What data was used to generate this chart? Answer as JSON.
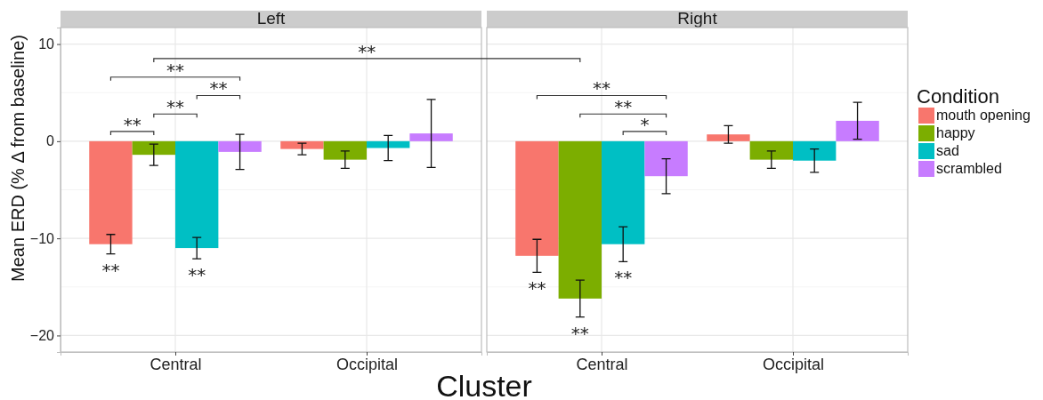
{
  "chart_data": [
    {
      "type": "bar",
      "title": "Left",
      "xlabel": "Cluster",
      "ylabel": "Mean ERD (% Δ from baseline)",
      "categories": [
        "Central",
        "Occipital"
      ],
      "series": [
        {
          "color": "#f8766d",
          "values": [
            -10.6,
            -0.8
          ],
          "errors": [
            1.0,
            0.6
          ]
        },
        {
          "color": "#7cae00",
          "values": [
            -1.4,
            -1.9
          ],
          "errors": [
            1.1,
            0.9
          ]
        },
        {
          "color": "#00bfc4",
          "values": [
            -11.0,
            -0.7
          ],
          "errors": [
            1.1,
            1.3
          ]
        },
        {
          "color": "#c77cff",
          "values": [
            -1.1,
            0.8
          ],
          "errors": [
            1.8,
            3.5
          ]
        }
      ],
      "ylim": [
        -21.7,
        11.7
      ],
      "yticks": [
        {
          "value": -20,
          "label": "−20"
        },
        {
          "value": -15,
          "label": null
        },
        {
          "value": -10,
          "label": "−10"
        },
        {
          "value": -5,
          "label": null
        },
        0,
        {
          "value": 5,
          "label": null
        },
        10
      ],
      "grid": true,
      "legend": false,
      "annotations": [
        "**",
        "**",
        "**",
        "**",
        "**",
        "**",
        "**"
      ]
    },
    {
      "type": "bar",
      "title": "Right",
      "categories": [
        "Central",
        "Occipital"
      ],
      "series": [
        {
          "name": "mouth opening",
          "color": "#f8766d",
          "values": [
            -11.8,
            0.7
          ],
          "errors": [
            1.7,
            0.9
          ]
        },
        {
          "name": "happy",
          "color": "#7cae00",
          "values": [
            -16.2,
            -1.9
          ],
          "errors": [
            1.9,
            0.9
          ]
        },
        {
          "name": "sad",
          "color": "#00bfc4",
          "values": [
            -10.6,
            -2.0
          ],
          "errors": [
            1.8,
            1.2
          ]
        },
        {
          "name": "scrambled",
          "color": "#c77cff",
          "values": [
            -3.6,
            2.1
          ],
          "errors": [
            1.8,
            1.9
          ]
        }
      ],
      "ylim": [
        -21.7,
        11.7
      ],
      "yticks": [
        -20,
        {
          "value": -15,
          "label": null
        },
        -10,
        {
          "value": -5,
          "label": null
        },
        0,
        {
          "value": 5,
          "label": null
        },
        10
      ],
      "grid": true,
      "tick_labels": "x",
      "legend": "right",
      "legend_title": "Condition",
      "annotations": [
        "**",
        "**",
        "*",
        "**",
        "**",
        "**"
      ]
    }
  ]
}
